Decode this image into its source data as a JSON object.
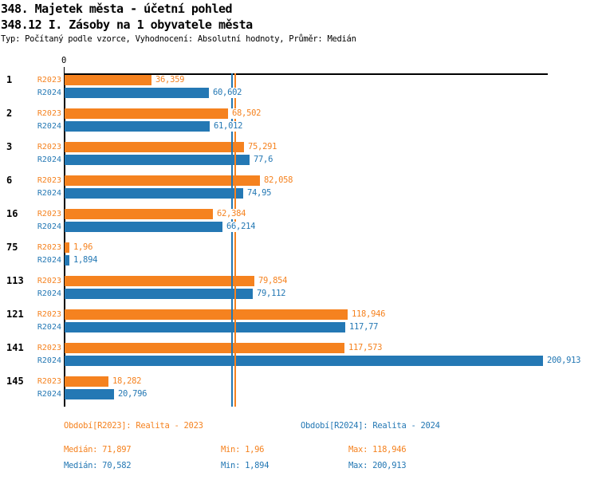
{
  "header": {
    "title1": "348. Majetek města - účetní pohled",
    "title2": "348.12 I. Zásoby na 1 obyvatele města",
    "subtitle": "Typ: Počítaný podle vzorce, Vyhodnocení: Absolutní hodnoty, Průměr: Medián"
  },
  "colors": {
    "r2023_orange": "#F5821F",
    "r2024_blue": "#2478B4",
    "axis_black": "#000000",
    "background": "#FFFFFF"
  },
  "chart_data": {
    "type": "bar",
    "orientation": "horizontal",
    "title": "348.12 I. Zásoby na 1 obyvatele města",
    "categories": [
      "1",
      "2",
      "3",
      "6",
      "16",
      "75",
      "113",
      "121",
      "141",
      "145"
    ],
    "series": [
      {
        "name": "R2023",
        "color": "#F5821F",
        "values": [
          36.359,
          68.502,
          75.291,
          82.058,
          62.384,
          1.96,
          79.854,
          118.946,
          117.573,
          18.282
        ],
        "value_labels": [
          "36,359",
          "68,502",
          "75,291",
          "82,058",
          "62,384",
          "1,96",
          "79,854",
          "118,946",
          "117,573",
          "18,282"
        ],
        "median": 71.897
      },
      {
        "name": "R2024",
        "color": "#2478B4",
        "values": [
          60.602,
          61.012,
          77.6,
          74.95,
          66.214,
          1.894,
          79.112,
          117.77,
          200.913,
          20.796
        ],
        "value_labels": [
          "60,602",
          "61,012",
          "77,6",
          "74,95",
          "66,214",
          "1,894",
          "79,112",
          "117,77",
          "200,913",
          "20,796"
        ],
        "median": 70.582
      }
    ],
    "x_axis": {
      "zero_label": "0",
      "min": 0,
      "max": 203,
      "grid": false
    },
    "median_lines": [
      {
        "series": "R2024",
        "value": 70.582,
        "display": "70,582",
        "color": "#2478B4"
      },
      {
        "series": "R2023",
        "value": 71.897,
        "display": "71,897",
        "color": "#F5821F"
      }
    ],
    "legend_position": "bottom"
  },
  "legend": {
    "r2023": {
      "period": "Období[R2023]: Realita - 2023",
      "median": "Medián: 71,897",
      "min": "Min: 1,96",
      "max": "Max: 118,946"
    },
    "r2024": {
      "period": "Období[R2024]: Realita - 2024",
      "median": "Medián: 70,582",
      "min": "Min: 1,894",
      "max": "Max: 200,913"
    }
  }
}
